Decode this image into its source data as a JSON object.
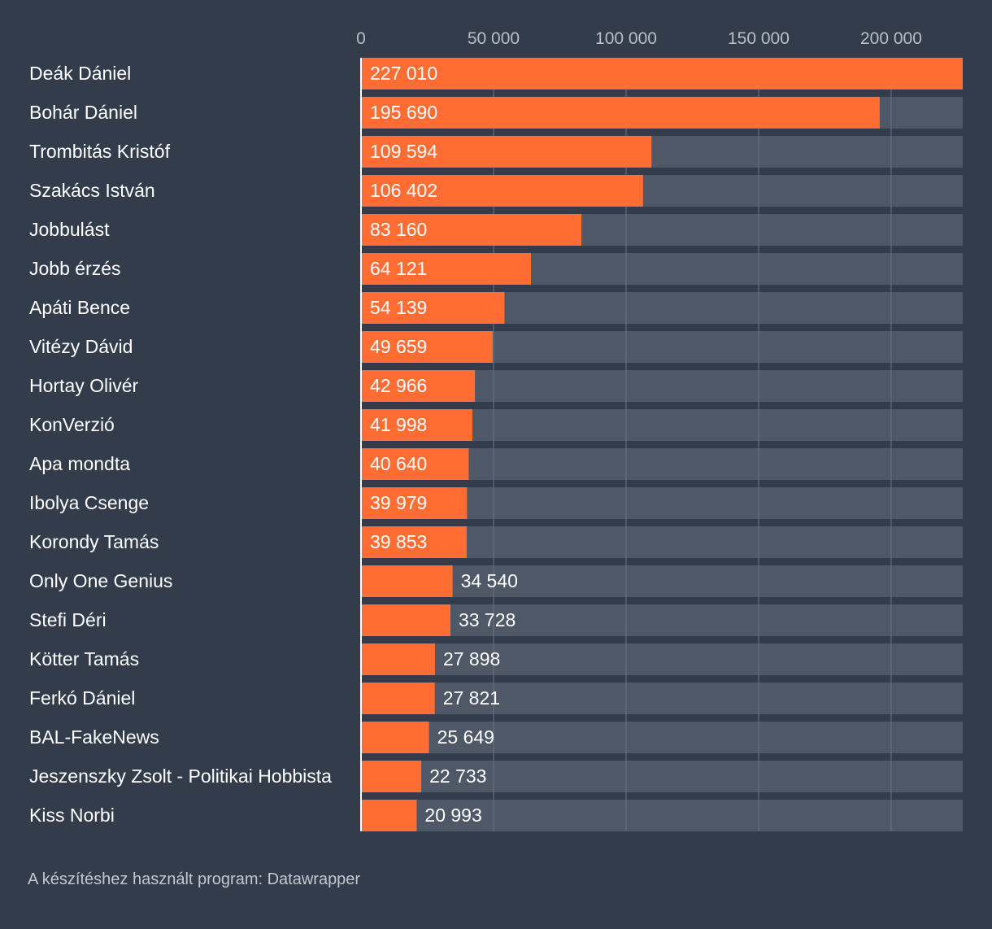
{
  "chart_data": {
    "type": "bar",
    "orientation": "horizontal",
    "categories": [
      "Deák Dániel",
      "Bohár Dániel",
      "Trombitás Kristóf",
      "Szakács István",
      "Jobbulást",
      "Jobb érzés",
      "Apáti Bence",
      "Vitézy Dávid",
      "Hortay Olivér",
      "KonVerzió",
      "Apa mondta",
      "Ibolya Csenge",
      "Korondy Tamás",
      "Only One Genius",
      "Stefi Déri",
      "Kötter Tamás",
      "Ferkó Dániel",
      "BAL-FakeNews",
      "Jeszenszky Zsolt - Politikai Hobbista",
      "Kiss Norbi"
    ],
    "values": [
      227010,
      195690,
      109594,
      106402,
      83160,
      64121,
      54139,
      49659,
      42966,
      41998,
      40640,
      39979,
      39853,
      34540,
      33728,
      27898,
      27821,
      25649,
      22733,
      20993
    ],
    "value_labels": [
      "227 010",
      "195 690",
      "109 594",
      "106 402",
      "83 160",
      "64 121",
      "54 139",
      "49 659",
      "42 966",
      "41 998",
      "40 640",
      "39 979",
      "39 853",
      "34 540",
      "33 728",
      "27 898",
      "27 821",
      "25 649",
      "22 733",
      "20 993"
    ],
    "xlim": [
      0,
      227010
    ],
    "xticks": [
      0,
      50000,
      100000,
      150000,
      200000
    ],
    "xtick_labels": [
      "0",
      "50 000",
      "100 000",
      "150 000",
      "200 000"
    ],
    "axis_position": "top",
    "grid": true,
    "colors": {
      "background": "#333c4b",
      "bar": "#ff6d33",
      "track": "#4f5866",
      "grid": "#6b7482"
    }
  },
  "footer": {
    "note": "A készítéshez használt program: Datawrapper"
  }
}
